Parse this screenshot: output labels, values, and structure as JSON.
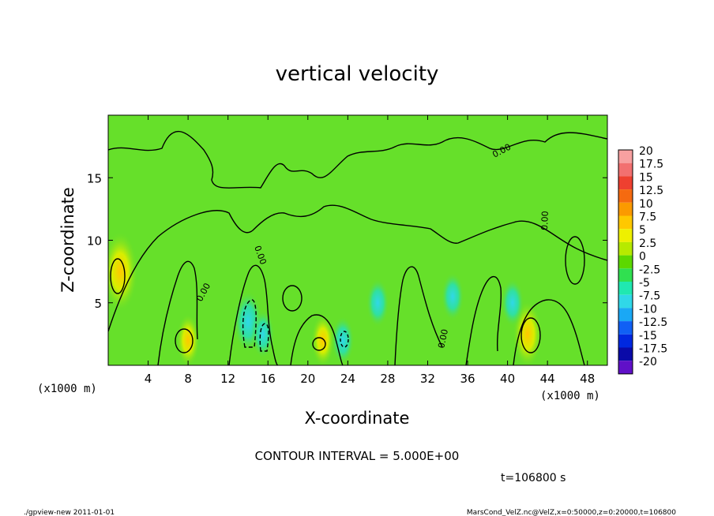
{
  "chart_data": {
    "type": "heatmap",
    "title": "vertical velocity",
    "xlabel": "X-coordinate",
    "ylabel": "Z-coordinate",
    "x_unit_left": "(x1000 m)",
    "x_unit_right": "(x1000 m)",
    "xlim": [
      0,
      50
    ],
    "ylim": [
      0,
      20
    ],
    "x_ticks": [
      4,
      8,
      12,
      16,
      20,
      24,
      28,
      32,
      36,
      40,
      44,
      48
    ],
    "y_ticks": [
      5,
      10,
      15
    ],
    "contour_interval_label": "CONTOUR INTERVAL = 5.000E+00",
    "contour_label": "0.00",
    "time_label": "t=106800 s",
    "colorbar": {
      "levels": [
        "20",
        "17.5",
        "15",
        "12.5",
        "10",
        "7.5",
        "5",
        "2.5",
        "0",
        "-2.5",
        "-5",
        "-7.5",
        "-10",
        "-12.5",
        "-15",
        "-17.5",
        "-20"
      ],
      "colors": [
        "#f7a0a0",
        "#f27070",
        "#ee4030",
        "#f56a10",
        "#fb9a00",
        "#ffc800",
        "#eef000",
        "#b6ea00",
        "#5cd800",
        "#30e050",
        "#20e8b0",
        "#30d8e8",
        "#1aa8f5",
        "#1060f5",
        "#0028e0",
        "#0a0aa8",
        "#6010c8"
      ]
    },
    "field_background": "#66e02a",
    "positive_cores": [
      {
        "x": 1.2,
        "z": 7.5,
        "value": 10
      },
      {
        "x": 8.0,
        "z": 2.0,
        "value": 5
      },
      {
        "x": 21.5,
        "z": 2.0,
        "value": 5
      },
      {
        "x": 42.0,
        "z": 2.5,
        "value": 7.5
      }
    ],
    "negative_cores": [
      {
        "x": 14.0,
        "z": 3.5,
        "value": -7.5
      },
      {
        "x": 15.5,
        "z": 2.5,
        "value": -5
      },
      {
        "x": 23.5,
        "z": 2.0,
        "value": -5
      },
      {
        "x": 27.0,
        "z": 5.0,
        "value": -5
      },
      {
        "x": 34.5,
        "z": 5.5,
        "value": -5
      },
      {
        "x": 40.5,
        "z": 5.0,
        "value": -5
      }
    ]
  },
  "footer": {
    "left": "./gpview-new   2011-01-01",
    "right": "MarsCond_VelZ.nc@VelZ,x=0:50000,z=0:20000,t=106800"
  }
}
